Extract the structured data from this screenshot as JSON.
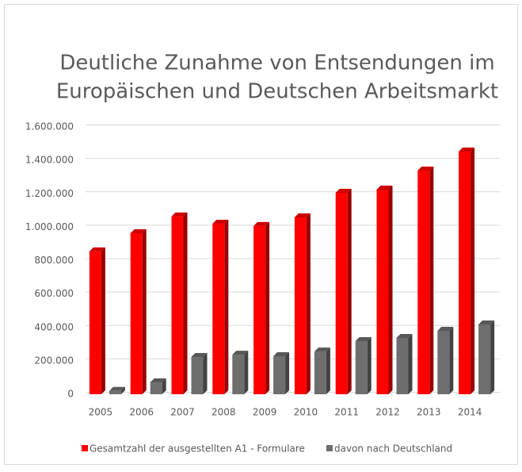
{
  "chart_data": {
    "type": "bar3d",
    "title": [
      "Deutliche Zunahme von Entsendungen im",
      "Europäischen und Deutschen Arbeitsmarkt"
    ],
    "categories": [
      "2005",
      "2006",
      "2007",
      "2008",
      "2009",
      "2010",
      "2011",
      "2012",
      "2013",
      "2014"
    ],
    "series": [
      {
        "name": "Gesamtzahl der ausgestellten A1 - Formulare",
        "color": "#ff0000",
        "values": [
          855000,
          964000,
          1064000,
          1021000,
          1007000,
          1059000,
          1206000,
          1225000,
          1339000,
          1453000
        ]
      },
      {
        "name": "davon nach Deutschland",
        "color": "#6e6e6e",
        "values": [
          20000,
          71000,
          223000,
          237000,
          228000,
          256000,
          318000,
          337000,
          380000,
          418000
        ]
      }
    ],
    "ylim": [
      0,
      1600000
    ],
    "yticks": [
      0,
      {
        "value": 200000,
        "label": "200.000"
      },
      {
        "value": 400000,
        "label": "400.000"
      },
      {
        "value": 600000,
        "label": "600.000"
      },
      {
        "value": 800000,
        "label": "800.000"
      },
      {
        "value": 1000000,
        "label": "1.000.000"
      },
      {
        "value": 1200000,
        "label": "1.200.000"
      },
      {
        "value": 1400000,
        "label": "1.400.000"
      },
      {
        "value": 1600000,
        "label": "1.600.000"
      }
    ],
    "grid": true,
    "legend": "bottom"
  }
}
